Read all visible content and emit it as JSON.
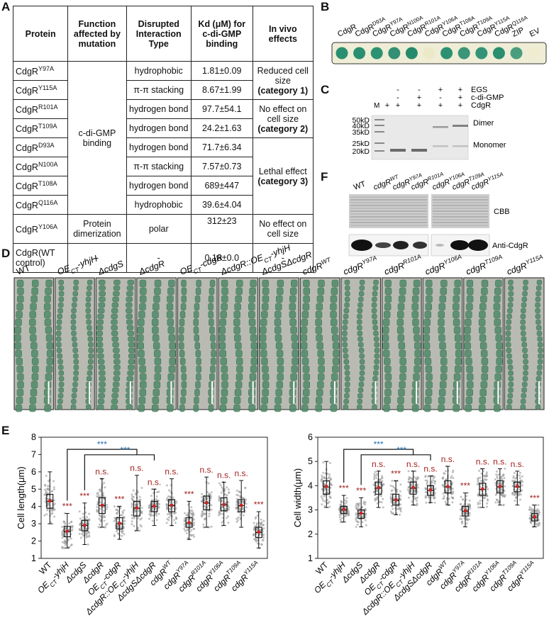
{
  "panels": {
    "A": "A",
    "B": "B",
    "C": "C",
    "D": "D",
    "E": "E",
    "F": "F"
  },
  "table": {
    "headers": [
      "Protein",
      "Function affected by mutation",
      "Disrupted Interaction Type",
      "Kd (μM) for c-di-GMP binding",
      "In vivo effects"
    ],
    "rows": [
      {
        "protein": "CdgR",
        "sup": "Y97A",
        "interaction": "hydrophobic",
        "kd": "1.81±0.09"
      },
      {
        "protein": "CdgR",
        "sup": "Y115A",
        "interaction": "π-π stacking",
        "kd": "8.67±1.99"
      },
      {
        "protein": "CdgR",
        "sup": "R101A",
        "interaction": "hydrogen bond",
        "kd": "97.7±54.1"
      },
      {
        "protein": "CdgR",
        "sup": "T109A",
        "interaction": "hydrogen bond",
        "kd": "24.2±1.63"
      },
      {
        "protein": "CdgR",
        "sup": "D93A",
        "interaction": "hydrogen bond",
        "kd": "71.7±6.34"
      },
      {
        "protein": "CdgR",
        "sup": "N100A",
        "interaction": "π-π stacking",
        "kd": "7.57±0.73"
      },
      {
        "protein": "CdgR",
        "sup": "T108A",
        "interaction": "hydrogen bond",
        "kd": "689±447"
      },
      {
        "protein": "CdgR",
        "sup": "Q116A",
        "interaction": "hydrophobic",
        "kd": "39.6±4.04"
      },
      {
        "protein": "CdgR",
        "sup": "Y106A",
        "interaction": "polar",
        "kd": "312±23"
      },
      {
        "protein": "CdgR(WT control)",
        "sup": "",
        "interaction": "-",
        "kd": "0.18±0.0"
      }
    ],
    "function_binding": "c-di-GMP binding",
    "function_dimer": "Protein dimerization",
    "function_wt": "-",
    "effect1": "Reduced cell size",
    "effect1_cat": "(category 1)",
    "effect2": "No effect on cell size",
    "effect2_cat": "(category 2)",
    "effect3": "Lethal effect",
    "effect3_cat": "(category 3)",
    "effect4": "No effect on cell size",
    "effect5": "-"
  },
  "panelB": {
    "labels": [
      "CdgR",
      "CdgR^D93A",
      "CdgR^Y97A",
      "CdgR^N100A",
      "CdgR^R101A",
      "CdgR^Y106A",
      "CdgR^T108A",
      "CdgR^T109A",
      "CdgR^Y115A",
      "CdgR^Q116A",
      "ZIP",
      "EV"
    ],
    "spots": [
      "#2a8f70",
      "#2a8f70",
      "#2d9272",
      "#348f74",
      "#258a6b",
      "#ece9c8",
      "#2b9171",
      "#3a9579",
      "#349377",
      "#2a8e6f",
      "#4a9d7e",
      "#efecd0"
    ]
  },
  "panelC": {
    "rows": [
      {
        "label": "EGS",
        "marks": [
          "-",
          "-",
          "+",
          "+"
        ]
      },
      {
        "label": "c-di-GMP",
        "marks": [
          "-",
          "+",
          "-",
          "+"
        ]
      },
      {
        "label": "CdgR",
        "marks": [
          "+",
          "+",
          "+",
          "+"
        ]
      }
    ],
    "m": "M",
    "m_plus": "+",
    "ladder": [
      "50kD",
      "40kD",
      "35kD",
      "25kD",
      "20kD"
    ],
    "dimer": "Dimer",
    "monomer": "Monomer"
  },
  "panelF": {
    "lanes": [
      "WT",
      "cdgR^WT",
      "cdgR^Y97A",
      "cdgR^R101A",
      "cdgR^Y106A",
      "cdgR^T109A",
      "cdgR^Y115A"
    ],
    "cbb": "CBB",
    "anti": "Anti-CdgR"
  },
  "panelD": {
    "labels": [
      "WT",
      "OECT-yhjH",
      "ΔcdgS",
      "ΔcdgR",
      "OECT-cdgR",
      "ΔcdgR::OECT-yhjH",
      "ΔcdgSΔcdgR",
      "cdgR^WT",
      "cdgR^Y97A",
      "cdgR^R101A",
      "cdgR^Y106A",
      "cdgR^T109A",
      "cdgR^Y115A"
    ]
  },
  "chart_data": [
    {
      "type": "box",
      "ylabel": "Cell length(μm)",
      "ylim": [
        1,
        8
      ],
      "yticks": [
        1,
        2,
        3,
        4,
        5,
        6,
        7,
        8
      ],
      "categories": [
        "WT",
        "OECT-yhjH",
        "ΔcdgS",
        "ΔcdgR",
        "OECT-cdgR",
        "ΔcdgR::OECT-yhjH",
        "ΔcdgSΔcdgR",
        "cdgR^WT",
        "cdgR^Y97A",
        "cdgR^R101A",
        "cdgR^Y106A",
        "cdgR^T109A",
        "cdgR^Y115A"
      ],
      "medians": [
        4.3,
        2.55,
        2.9,
        4.05,
        3.0,
        3.9,
        4.0,
        4.05,
        3.05,
        4.2,
        4.1,
        4.05,
        2.5
      ],
      "q1": [
        3.9,
        2.25,
        2.6,
        3.6,
        2.7,
        3.45,
        3.7,
        3.7,
        2.8,
        3.8,
        3.75,
        3.7,
        2.2
      ],
      "q3": [
        4.7,
        2.85,
        3.2,
        4.5,
        3.35,
        4.3,
        4.3,
        4.4,
        3.35,
        4.6,
        4.5,
        4.4,
        2.8
      ],
      "wlow": [
        3.0,
        1.6,
        1.8,
        2.8,
        2.1,
        2.6,
        2.9,
        2.9,
        2.1,
        2.8,
        2.9,
        2.8,
        1.6
      ],
      "whigh": [
        6.0,
        3.6,
        4.2,
        5.6,
        4.0,
        5.8,
        5.0,
        5.6,
        4.3,
        5.7,
        5.4,
        5.5,
        3.7
      ],
      "significance": [
        "",
        "***",
        "***",
        "n.s.",
        "***",
        "n.s.",
        "n.s.",
        "n.s.",
        "***",
        "n.s.",
        "n.s.",
        "n.s.",
        "***"
      ],
      "bracket_sig": [
        "***",
        "***"
      ]
    },
    {
      "type": "box",
      "ylabel": "Cell width(μm)",
      "ylim": [
        1,
        6
      ],
      "yticks": [
        1,
        2,
        3,
        4,
        5,
        6
      ],
      "categories": [
        "WT",
        "OECT-yhjH",
        "ΔcdgS",
        "ΔcdgR",
        "OECT-cdgR",
        "ΔcdgR::OECT-yhjH",
        "ΔcdgSΔcdgR",
        "cdgR^WT",
        "cdgR^Y97A",
        "cdgR^R101A",
        "cdgR^Y106A",
        "cdgR^T109A",
        "cdgR^Y115A"
      ],
      "medians": [
        3.95,
        3.0,
        2.85,
        3.9,
        3.4,
        3.9,
        3.8,
        3.95,
        2.95,
        3.85,
        3.95,
        3.95,
        2.7
      ],
      "q1": [
        3.65,
        2.85,
        2.65,
        3.65,
        3.2,
        3.65,
        3.6,
        3.7,
        2.75,
        3.6,
        3.7,
        3.75,
        2.55
      ],
      "q3": [
        4.2,
        3.15,
        3.0,
        4.15,
        3.65,
        4.15,
        4.0,
        4.2,
        3.15,
        4.1,
        4.2,
        4.15,
        2.85
      ],
      "wlow": [
        3.1,
        2.5,
        2.3,
        3.1,
        2.8,
        3.2,
        3.3,
        3.2,
        2.3,
        3.1,
        3.2,
        3.2,
        2.3
      ],
      "whigh": [
        5.0,
        3.6,
        3.5,
        4.6,
        4.2,
        4.6,
        4.4,
        4.8,
        3.7,
        4.7,
        4.7,
        4.6,
        3.2
      ],
      "significance": [
        "",
        "***",
        "***",
        "n.s.",
        "***",
        "n.s.",
        "n.s.",
        "n.s.",
        "***",
        "n.s.",
        "n.s.",
        "n.s.",
        "***"
      ],
      "bracket_sig": [
        "***",
        "***"
      ]
    }
  ],
  "colors": {
    "sig_red": "#a3201d",
    "sig_blue": "#1f6fb0",
    "spot_green": "#2a8f70",
    "mean_red": "#d42020"
  }
}
